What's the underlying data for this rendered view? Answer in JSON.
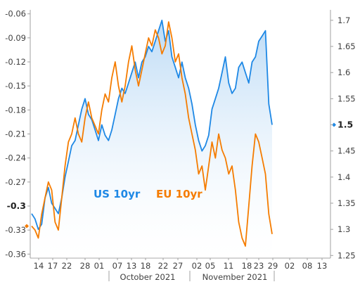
{
  "chart_data": {
    "type": "line",
    "left_axis": {
      "min": -0.365,
      "max": -0.055,
      "ticks": [
        "-0.06",
        "-0.09",
        "-0.12",
        "-0.15",
        "-0.18",
        "-0.21",
        "-0.24",
        "-0.27",
        "-0.3",
        "-0.33",
        "-0.36"
      ],
      "tick_values": [
        -0.06,
        -0.09,
        -0.12,
        -0.15,
        -0.18,
        -0.21,
        -0.24,
        -0.27,
        -0.3,
        -0.33,
        -0.36
      ],
      "highlight": "-0.3"
    },
    "right_axis": {
      "min": 1.245,
      "max": 1.72,
      "ticks": [
        "1.7",
        "1.65",
        "1.6",
        "1.55",
        "1.5",
        "1.45",
        "1.4",
        "1.35",
        "1.3",
        "1.25"
      ],
      "tick_values": [
        1.7,
        1.65,
        1.6,
        1.55,
        1.5,
        1.45,
        1.4,
        1.35,
        1.3,
        1.25
      ],
      "highlight": "1.5"
    },
    "x_ticks": [
      "14",
      "17",
      "22",
      "28",
      "01",
      "07",
      "13",
      "18",
      "22",
      "27",
      "02",
      "05",
      "11",
      "18",
      "23",
      "29",
      "02",
      "08",
      "13"
    ],
    "months": [
      "October 2021",
      "November 2021"
    ],
    "series": [
      {
        "name": "US 10yr",
        "axis": "right",
        "color": "#1E88E5",
        "values": [
          1.33,
          1.32,
          1.3,
          1.31,
          1.36,
          1.38,
          1.35,
          1.34,
          1.33,
          1.36,
          1.4,
          1.43,
          1.46,
          1.47,
          1.5,
          1.53,
          1.55,
          1.52,
          1.51,
          1.49,
          1.47,
          1.5,
          1.48,
          1.47,
          1.49,
          1.52,
          1.55,
          1.57,
          1.56,
          1.58,
          1.6,
          1.62,
          1.59,
          1.62,
          1.63,
          1.65,
          1.64,
          1.66,
          1.68,
          1.7,
          1.66,
          1.68,
          1.63,
          1.61,
          1.59,
          1.62,
          1.59,
          1.57,
          1.54,
          1.5,
          1.47,
          1.45,
          1.46,
          1.48,
          1.53,
          1.55,
          1.57,
          1.6,
          1.63,
          1.58,
          1.56,
          1.57,
          1.61,
          1.62,
          1.6,
          1.58,
          1.62,
          1.63,
          1.66,
          1.67,
          1.68,
          1.54,
          1.5
        ]
      },
      {
        "name": "EU 10yr",
        "axis": "left",
        "color": "#F57C00",
        "values": [
          -0.325,
          -0.33,
          -0.34,
          -0.31,
          -0.29,
          -0.27,
          -0.28,
          -0.32,
          -0.33,
          -0.29,
          -0.25,
          -0.22,
          -0.21,
          -0.19,
          -0.21,
          -0.22,
          -0.19,
          -0.17,
          -0.19,
          -0.2,
          -0.21,
          -0.18,
          -0.16,
          -0.17,
          -0.14,
          -0.12,
          -0.15,
          -0.17,
          -0.15,
          -0.12,
          -0.1,
          -0.13,
          -0.15,
          -0.13,
          -0.11,
          -0.09,
          -0.1,
          -0.08,
          -0.09,
          -0.11,
          -0.1,
          -0.07,
          -0.09,
          -0.12,
          -0.11,
          -0.14,
          -0.16,
          -0.19,
          -0.21,
          -0.23,
          -0.26,
          -0.25,
          -0.28,
          -0.25,
          -0.22,
          -0.24,
          -0.21,
          -0.23,
          -0.24,
          -0.26,
          -0.25,
          -0.28,
          -0.32,
          -0.34,
          -0.35,
          -0.3,
          -0.25,
          -0.21,
          -0.22,
          -0.24,
          -0.26,
          -0.31,
          -0.335
        ]
      }
    ],
    "legend": [
      {
        "label": "US 10yr",
        "color": "#1E88E5"
      },
      {
        "label": "EU 10yr",
        "color": "#F57C00"
      }
    ],
    "grid": false
  }
}
